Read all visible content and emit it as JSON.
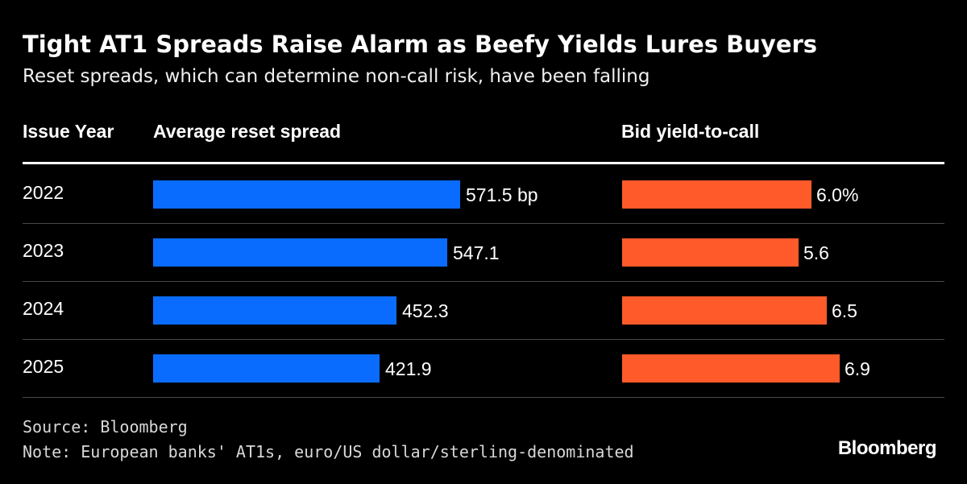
{
  "chart_data": {
    "type": "bar",
    "title": "Tight AT1 Spreads Raise Alarm as Beefy Yields Lures Buyers",
    "subtitle": "Reset spreads, which can determine non-call risk, have been falling",
    "column_headers": {
      "year": "Issue Year",
      "spread": "Average reset spread",
      "yield": "Bid yield-to-call"
    },
    "categories": [
      "2022",
      "2023",
      "2024",
      "2025"
    ],
    "series": [
      {
        "name": "Average reset spread",
        "values": [
          571.5,
          547.1,
          452.3,
          421.9
        ],
        "labels": [
          "571.5 bp",
          "547.1",
          "452.3",
          "421.9"
        ],
        "color": "#0a6cff",
        "xlim": [
          0,
          600
        ]
      },
      {
        "name": "Bid yield-to-call",
        "values": [
          6.0,
          5.6,
          6.5,
          6.9
        ],
        "labels": [
          "6.0%",
          "5.6",
          "6.5",
          "6.9"
        ],
        "color": "#ff5a2a",
        "xlim": [
          0,
          6.9
        ]
      }
    ]
  },
  "footer": {
    "source": "Source: Bloomberg",
    "note": "Note: European banks' AT1s, euro/US dollar/sterling-denominated"
  },
  "logo": "Bloomberg"
}
